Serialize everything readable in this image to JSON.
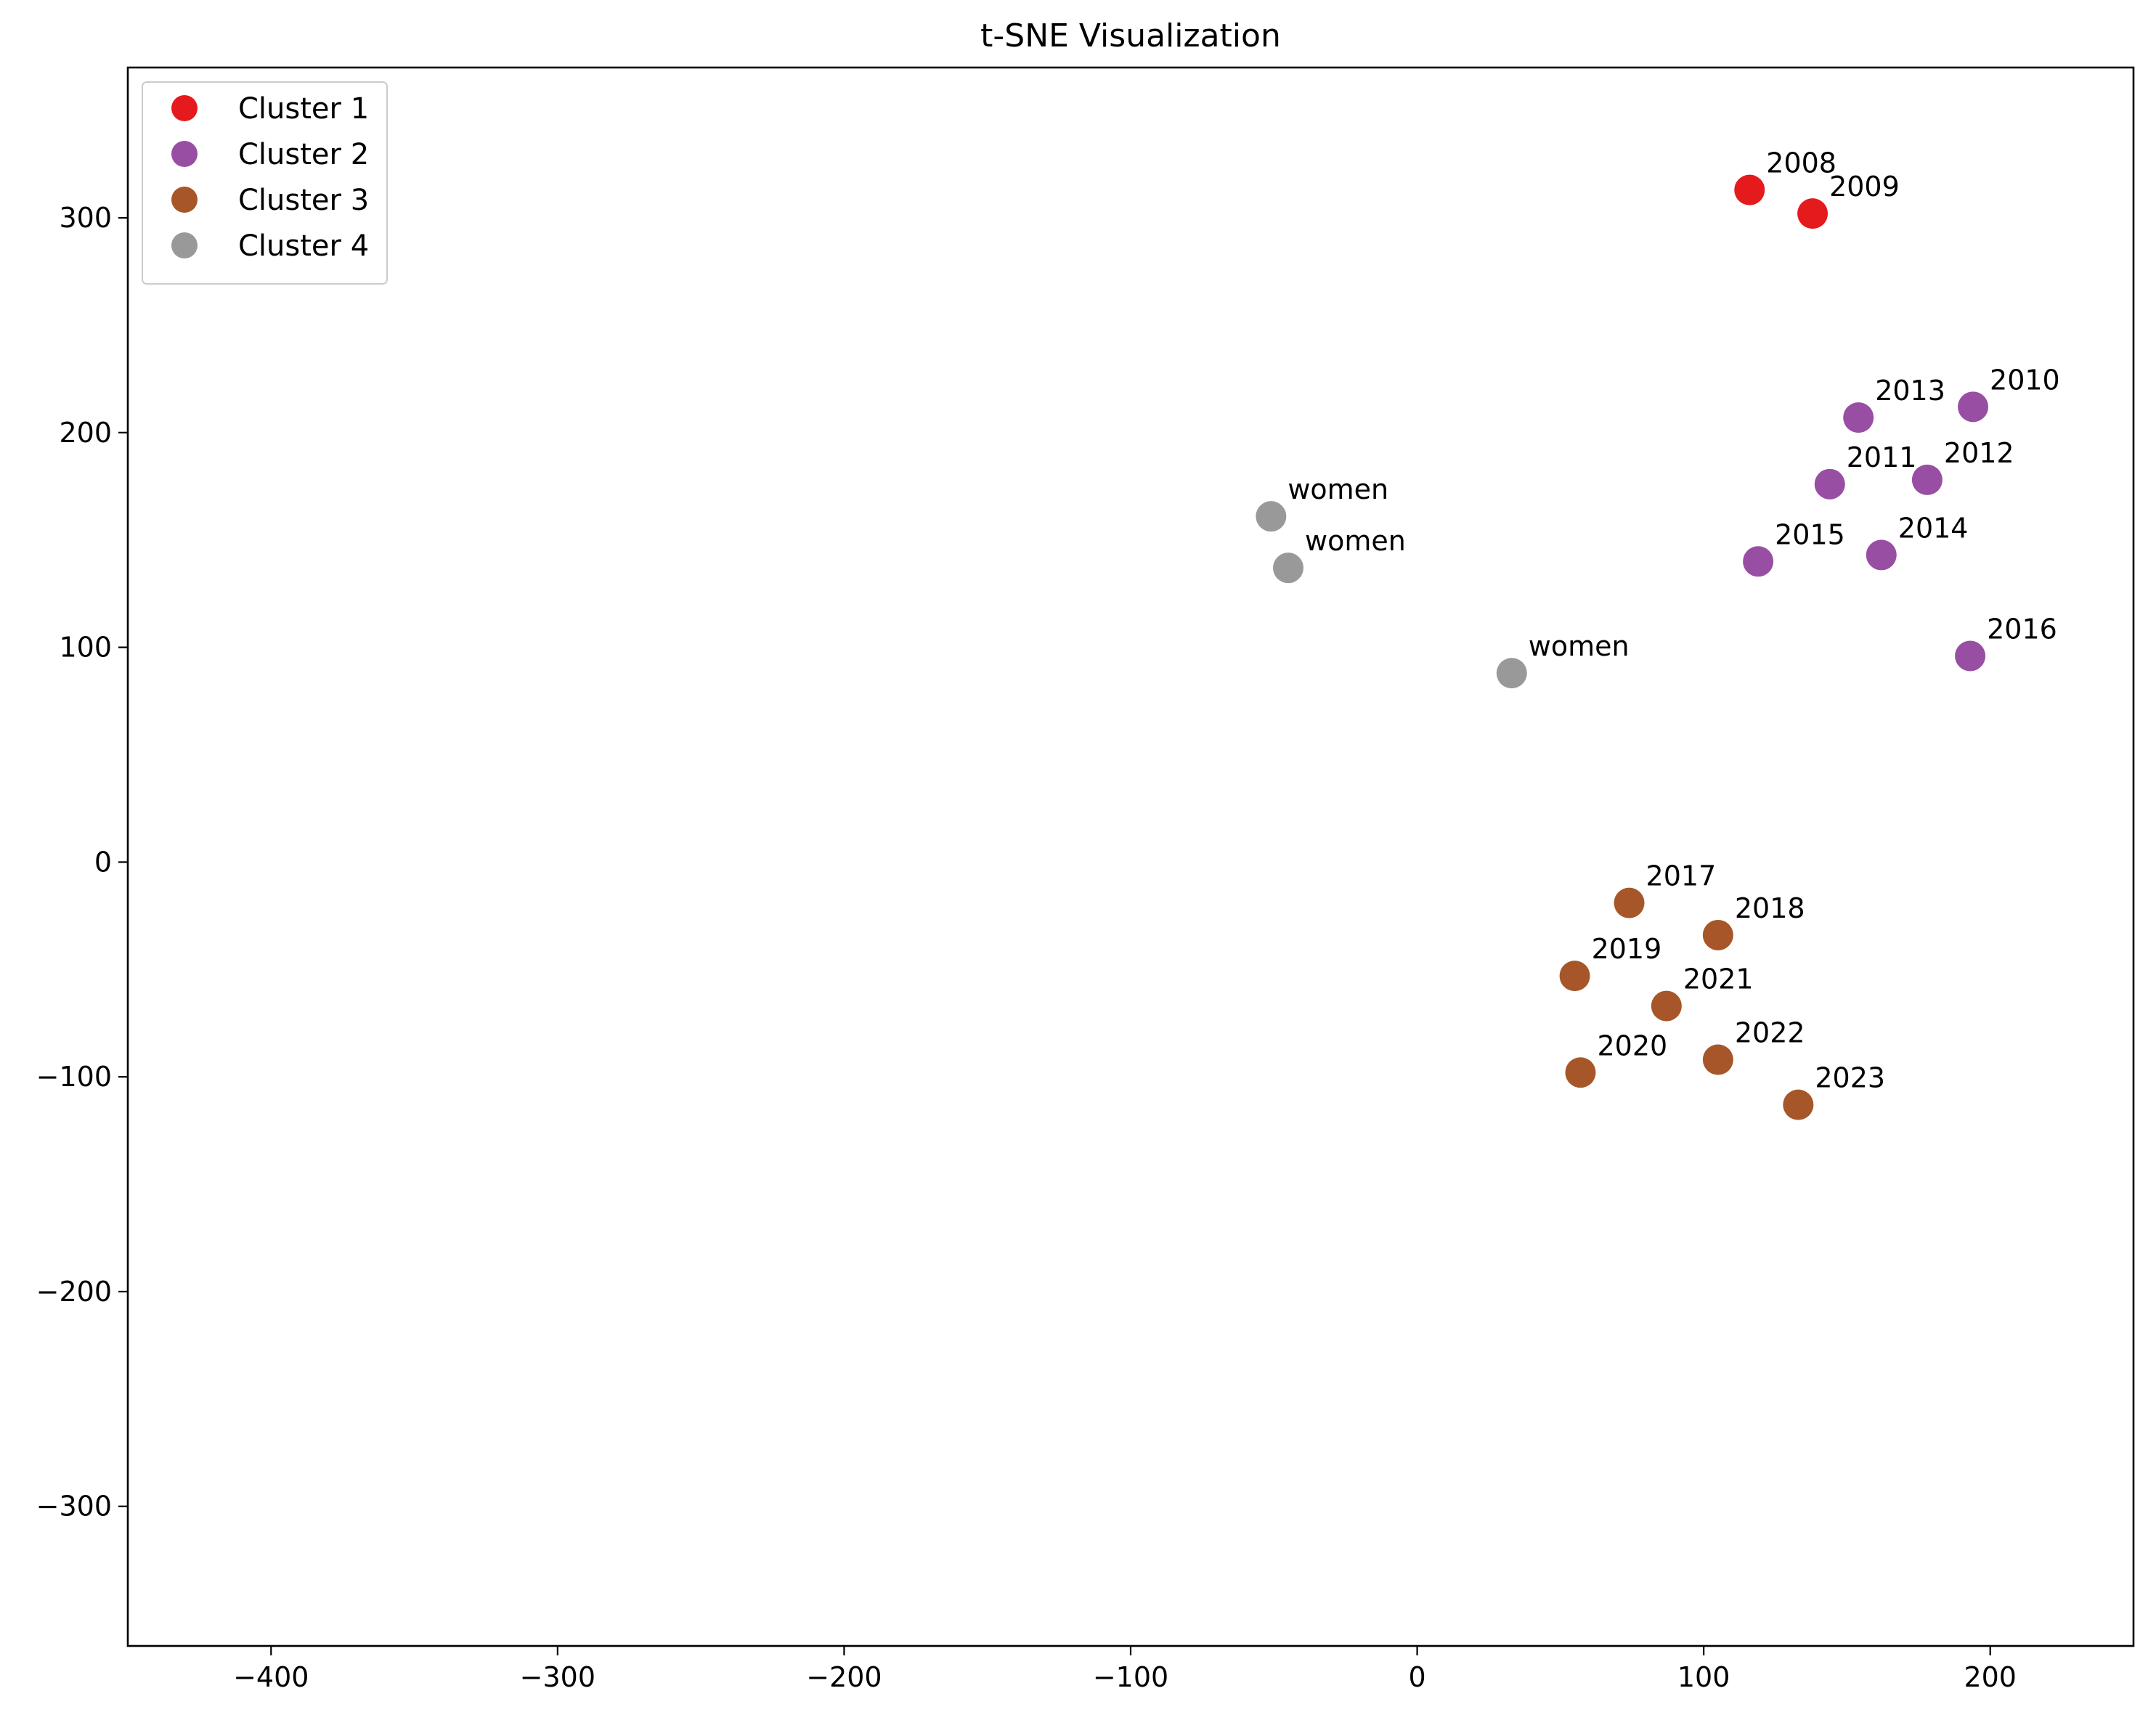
{
  "chart_data": {
    "type": "scatter",
    "title": "t-SNE Visualization",
    "xlabel": "",
    "ylabel": "",
    "xlim": [
      -450,
      250
    ],
    "ylim": [
      -365,
      370
    ],
    "x_ticks": [
      -400,
      -300,
      -200,
      -100,
      0,
      100,
      200
    ],
    "y_ticks": [
      -300,
      -200,
      -100,
      0,
      100,
      200,
      300
    ],
    "grid": false,
    "legend_position": "top-left",
    "series": [
      {
        "name": "Cluster 1",
        "color": "#e41a1c",
        "points": [
          {
            "x": 116,
            "y": 313,
            "label": "2008"
          },
          {
            "x": 138,
            "y": 302,
            "label": "2009"
          }
        ]
      },
      {
        "name": "Cluster 2",
        "color": "#984ea3",
        "points": [
          {
            "x": 194,
            "y": 212,
            "label": "2010"
          },
          {
            "x": 144,
            "y": 176,
            "label": "2011"
          },
          {
            "x": 178,
            "y": 178,
            "label": "2012"
          },
          {
            "x": 154,
            "y": 207,
            "label": "2013"
          },
          {
            "x": 162,
            "y": 143,
            "label": "2014"
          },
          {
            "x": 119,
            "y": 140,
            "label": "2015"
          },
          {
            "x": 193,
            "y": 96,
            "label": "2016"
          }
        ]
      },
      {
        "name": "Cluster 3",
        "color": "#a65628",
        "points": [
          {
            "x": 74,
            "y": -19,
            "label": "2017"
          },
          {
            "x": 105,
            "y": -34,
            "label": "2018"
          },
          {
            "x": 55,
            "y": -53,
            "label": "2019"
          },
          {
            "x": 57,
            "y": -98,
            "label": "2020"
          },
          {
            "x": 87,
            "y": -67,
            "label": "2021"
          },
          {
            "x": 105,
            "y": -92,
            "label": "2022"
          },
          {
            "x": 133,
            "y": -113,
            "label": "2023"
          }
        ]
      },
      {
        "name": "Cluster 4",
        "color": "#999999",
        "points": [
          {
            "x": -51,
            "y": 161,
            "label": "women"
          },
          {
            "x": -45,
            "y": 137,
            "label": "women"
          },
          {
            "x": 33,
            "y": 88,
            "label": "women"
          }
        ]
      }
    ]
  }
}
